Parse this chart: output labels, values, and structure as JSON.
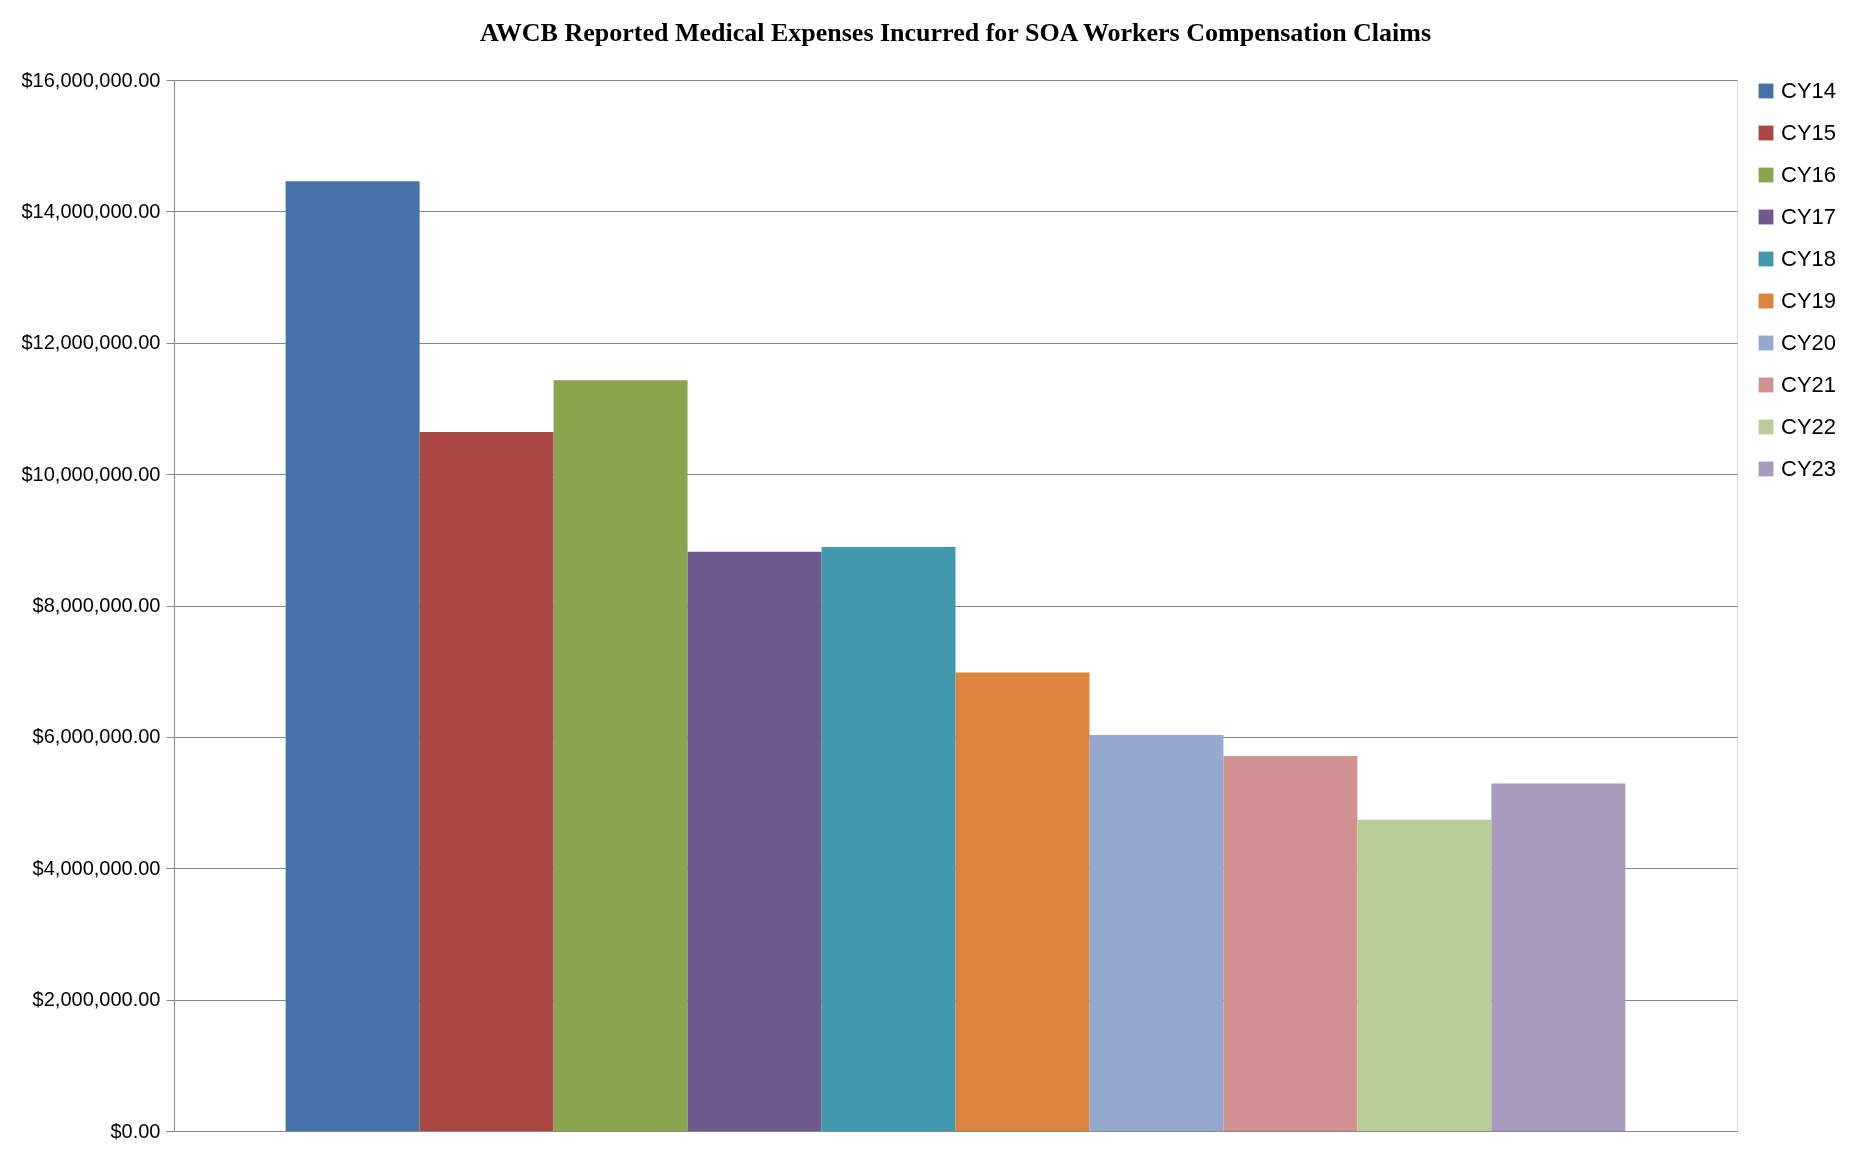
{
  "chart_data": {
    "type": "bar",
    "title": "AWCB Reported Medical Expenses Incurred for SOA Workers Compensation Claims",
    "categories": [
      null
    ],
    "series": [
      {
        "name": "CY14",
        "color": "#4572a7",
        "values": [
          14460000
        ]
      },
      {
        "name": "CY15",
        "color": "#aa4643",
        "values": [
          10640000
        ]
      },
      {
        "name": "CY16",
        "color": "#89a54e",
        "values": [
          11430000
        ]
      },
      {
        "name": "CY17",
        "color": "#71588f",
        "values": [
          8820000
        ]
      },
      {
        "name": "CY18",
        "color": "#4198af",
        "values": [
          8890000
        ]
      },
      {
        "name": "CY19",
        "color": "#db843d",
        "values": [
          6980000
        ]
      },
      {
        "name": "CY20",
        "color": "#93a9cf",
        "values": [
          6030000
        ]
      },
      {
        "name": "CY21",
        "color": "#d19392",
        "values": [
          5710000
        ]
      },
      {
        "name": "CY22",
        "color": "#b9cd96",
        "values": [
          4740000
        ]
      },
      {
        "name": "CY23",
        "color": "#a99bbd",
        "values": [
          5290000
        ]
      }
    ],
    "ylim": [
      0,
      16000000
    ],
    "yticks": [
      {
        "value": 0,
        "label": "$0.00"
      },
      {
        "value": 2000000,
        "label": "$2,000,000.00"
      },
      {
        "value": 4000000,
        "label": "$4,000,000.00"
      },
      {
        "value": 6000000,
        "label": "$6,000,000.00"
      },
      {
        "value": 8000000,
        "label": "$8,000,000.00"
      },
      {
        "value": 10000000,
        "label": "$10,000,000.00"
      },
      {
        "value": 12000000,
        "label": "$12,000,000.00"
      },
      {
        "value": 14000000,
        "label": "$14,000,000.00"
      },
      {
        "value": 16000000,
        "label": "$16,000,000.00"
      }
    ],
    "grid": "y",
    "legend": "right"
  }
}
